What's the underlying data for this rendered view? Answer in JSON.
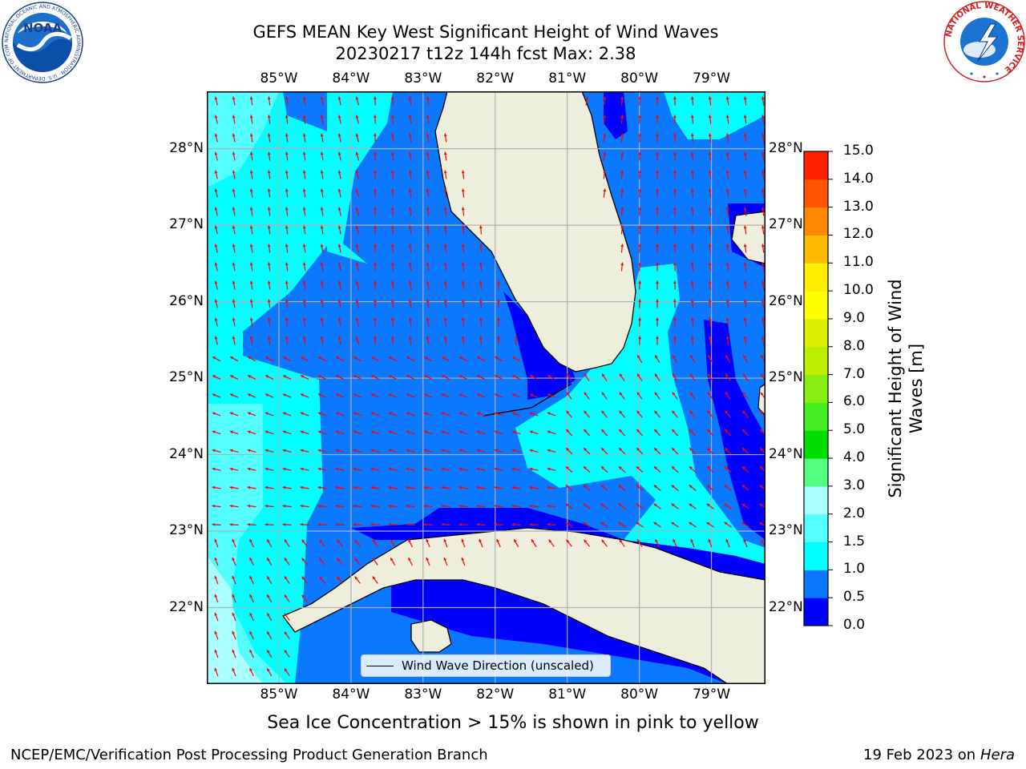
{
  "title": {
    "line1": "GEFS MEAN Key West Significant Height of Wind Waves",
    "line2": "20230217 t12z 144h fcst   Max: 2.38"
  },
  "map": {
    "lon_ticks": [
      "85°W",
      "84°W",
      "83°W",
      "82°W",
      "81°W",
      "80°W",
      "79°W"
    ],
    "lat_ticks": [
      "28°N",
      "27°N",
      "26°N",
      "25°N",
      "24°N",
      "23°N",
      "22°N"
    ],
    "extent": {
      "lon_min": -86.0,
      "lon_max": -78.25,
      "lat_min": 21.0,
      "lat_max": 28.75
    },
    "arrow_color": "#ff0000",
    "land_color": "#eeeedd",
    "grid_color": "#b0b0b0"
  },
  "colorbar": {
    "label": "Significant Height of Wind Waves [m]",
    "tick_labels": [
      "0.0",
      "0.5",
      "1.0",
      "1.5",
      "2.0",
      "3.0",
      "4.0",
      "5.0",
      "6.0",
      "7.0",
      "8.0",
      "9.0",
      "10.0",
      "11.0",
      "12.0",
      "13.0",
      "14.0",
      "15.0"
    ],
    "colors": [
      "#0000ff",
      "#0a78ff",
      "#00ffff",
      "#55ffff",
      "#aaffff",
      "#55ff7f",
      "#00dd00",
      "#44ee22",
      "#88ee11",
      "#bbee00",
      "#ddee00",
      "#ffff00",
      "#ffee00",
      "#ffbb00",
      "#ff8800",
      "#ff5500",
      "#ff2200"
    ]
  },
  "legend": {
    "label": "Wind Wave Direction (unscaled)"
  },
  "ice_note": "Sea Ice Concentration > 15% is shown in pink to yellow",
  "footer": {
    "left": "NCEP/EMC/Verification Post Processing Product Generation Branch",
    "date": "19 Feb 2023 on",
    "host": "Hera"
  },
  "logos": {
    "noaa_text": "NOAA",
    "noaa_ring": "NATIONAL OCEANIC AND ATMOSPHERIC ADMINISTRATION · U.S. DEPARTMENT OF COMMERCE ·",
    "nws_ring": "NATIONAL WEATHER SERVICE"
  }
}
